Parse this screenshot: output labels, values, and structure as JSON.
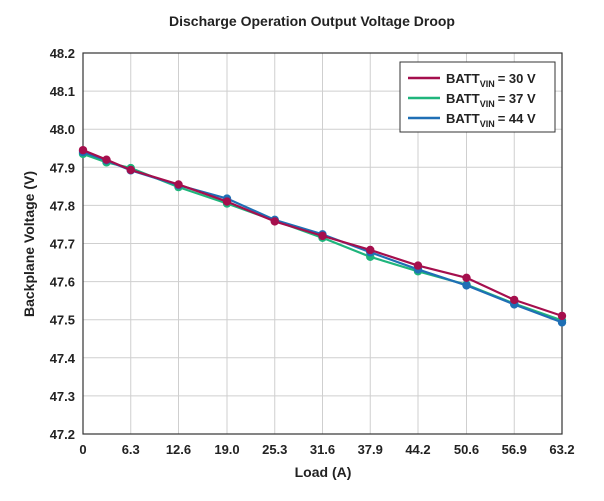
{
  "chart_data": {
    "type": "line",
    "title": "Discharge Operation Output Voltage Droop",
    "xlabel": "Load (A)",
    "ylabel": "Backplane Voltage (V)",
    "x_ticks": [
      "0",
      "6.3",
      "12.6",
      "19.0",
      "25.3",
      "31.6",
      "37.9",
      "44.2",
      "50.6",
      "56.9",
      "63.2"
    ],
    "y_ticks": [
      "47.2",
      "47.3",
      "47.4",
      "47.5",
      "47.6",
      "47.7",
      "47.8",
      "47.9",
      "48.0",
      "48.1",
      "48.2"
    ],
    "xlim": [
      0,
      63.2
    ],
    "ylim": [
      47.2,
      48.2
    ],
    "grid": true,
    "legend_position": "top-right",
    "series": [
      {
        "name_main": "BATT",
        "name_sub": "VIN",
        "name_tail": "= 30 V",
        "color": "#a50f4d",
        "x": [
          0,
          3.1,
          6.3,
          12.6,
          19.0,
          25.3,
          31.6,
          37.9,
          44.2,
          50.6,
          56.9,
          63.2
        ],
        "y": [
          47.945,
          47.92,
          47.893,
          47.855,
          47.81,
          47.758,
          47.72,
          47.683,
          47.642,
          47.61,
          47.552,
          47.51
        ]
      },
      {
        "name_main": "BATT",
        "name_sub": "VIN",
        "name_tail": "= 37 V",
        "color": "#1fb57c",
        "x": [
          0,
          3.1,
          6.3,
          12.6,
          19.0,
          25.3,
          31.6,
          37.9,
          44.2,
          50.6,
          56.9,
          63.2
        ],
        "y": [
          47.935,
          47.913,
          47.898,
          47.848,
          47.805,
          47.76,
          47.715,
          47.665,
          47.627,
          47.592,
          47.542,
          47.498
        ]
      },
      {
        "name_main": "BATT",
        "name_sub": "VIN",
        "name_tail": "= 44 V",
        "color": "#1f6fb5",
        "x": [
          0,
          3.1,
          6.3,
          12.6,
          19.0,
          25.3,
          31.6,
          37.9,
          44.2,
          50.6,
          56.9,
          63.2
        ],
        "y": [
          47.94,
          47.918,
          47.892,
          47.853,
          47.818,
          47.762,
          47.724,
          47.677,
          47.632,
          47.59,
          47.54,
          47.493
        ]
      }
    ]
  },
  "colors": {
    "grid": "#cfcfcf",
    "axis": "#333333",
    "text": "#222222"
  }
}
